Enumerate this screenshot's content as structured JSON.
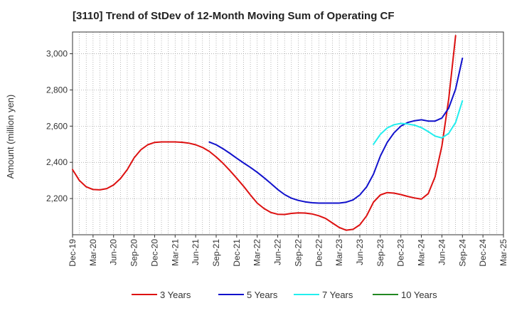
{
  "chart_data": {
    "type": "line",
    "title": "[3110]  Trend of StDev of 12-Month Moving Sum of Operating CF",
    "xlabel": "",
    "ylabel": "Amount (million yen)",
    "ylim": [
      2000,
      3120
    ],
    "yticks": [
      2200,
      2400,
      2600,
      2800,
      3000
    ],
    "ytick_labels": [
      "2,200",
      "2,400",
      "2,600",
      "2,800",
      "3,000"
    ],
    "x_start": "Dec-19",
    "x_end": "Mar-25",
    "xtick_labels": [
      "Dec-19",
      "Mar-20",
      "Jun-20",
      "Sep-20",
      "Dec-20",
      "Mar-21",
      "Jun-21",
      "Sep-21",
      "Dec-21",
      "Mar-22",
      "Jun-22",
      "Sep-22",
      "Dec-22",
      "Mar-23",
      "Jun-23",
      "Sep-23",
      "Dec-23",
      "Mar-24",
      "Jun-24",
      "Sep-24",
      "Dec-24",
      "Mar-25"
    ],
    "grid": true,
    "legend_position": "bottom",
    "series": [
      {
        "name": "3 Years",
        "color": "#dd1111",
        "x": [
          "Dec-19",
          "Jan-20",
          "Feb-20",
          "Mar-20",
          "Apr-20",
          "May-20",
          "Jun-20",
          "Jul-20",
          "Aug-20",
          "Sep-20",
          "Oct-20",
          "Nov-20",
          "Dec-20",
          "Jan-21",
          "Feb-21",
          "Mar-21",
          "Apr-21",
          "May-21",
          "Jun-21",
          "Jul-21",
          "Aug-21",
          "Sep-21",
          "Oct-21",
          "Nov-21",
          "Dec-21",
          "Jan-22",
          "Feb-22",
          "Mar-22",
          "Apr-22",
          "May-22",
          "Jun-22",
          "Jul-22",
          "Aug-22",
          "Sep-22",
          "Oct-22",
          "Nov-22",
          "Dec-22",
          "Jan-23",
          "Feb-23",
          "Mar-23",
          "Apr-23",
          "May-23",
          "Jun-23",
          "Jul-23",
          "Aug-23",
          "Sep-23",
          "Oct-23",
          "Nov-23",
          "Dec-23",
          "Jan-24",
          "Feb-24",
          "Mar-24",
          "Apr-24",
          "May-24",
          "Jun-24",
          "Jul-24",
          "Aug-24",
          "Sep-24"
        ],
        "values": [
          2360,
          2300,
          2265,
          2250,
          2248,
          2255,
          2275,
          2310,
          2360,
          2425,
          2470,
          2497,
          2510,
          2513,
          2513,
          2513,
          2511,
          2506,
          2497,
          2482,
          2460,
          2430,
          2395,
          2355,
          2312,
          2268,
          2220,
          2175,
          2145,
          2123,
          2113,
          2112,
          2118,
          2121,
          2120,
          2115,
          2105,
          2090,
          2065,
          2040,
          2025,
          2030,
          2055,
          2105,
          2180,
          2220,
          2233,
          2230,
          2222,
          2212,
          2203,
          2197,
          2227,
          2320,
          2490,
          2750,
          3100,
          null
        ]
      },
      {
        "name": "5 Years",
        "color": "#1111cc",
        "x": [
          "Aug-21",
          "Sep-21",
          "Oct-21",
          "Nov-21",
          "Dec-21",
          "Jan-22",
          "Feb-22",
          "Mar-22",
          "Apr-22",
          "May-22",
          "Jun-22",
          "Jul-22",
          "Aug-22",
          "Sep-22",
          "Oct-22",
          "Nov-22",
          "Dec-22",
          "Jan-23",
          "Feb-23",
          "Mar-23",
          "Apr-23",
          "May-23",
          "Jun-23",
          "Jul-23",
          "Aug-23",
          "Sep-23",
          "Oct-23",
          "Nov-23",
          "Dec-23",
          "Jan-24",
          "Feb-24",
          "Mar-24",
          "Apr-24",
          "May-24",
          "Jun-24",
          "Jul-24",
          "Aug-24",
          "Sep-24"
        ],
        "values": [
          2512,
          2497,
          2475,
          2450,
          2423,
          2397,
          2372,
          2345,
          2315,
          2283,
          2250,
          2222,
          2202,
          2190,
          2182,
          2177,
          2175,
          2175,
          2175,
          2175,
          2180,
          2192,
          2220,
          2265,
          2335,
          2435,
          2510,
          2563,
          2600,
          2620,
          2630,
          2635,
          2628,
          2628,
          2645,
          2700,
          2805,
          2975
        ]
      },
      {
        "name": "7 Years",
        "color": "#22eeee",
        "x": [
          "Aug-23",
          "Sep-23",
          "Oct-23",
          "Nov-23",
          "Dec-23",
          "Jan-24",
          "Feb-24",
          "Mar-24",
          "Apr-24",
          "May-24",
          "Jun-24",
          "Jul-24",
          "Aug-24",
          "Sep-24"
        ],
        "values": [
          2500,
          2555,
          2590,
          2608,
          2615,
          2612,
          2605,
          2592,
          2570,
          2545,
          2535,
          2560,
          2620,
          2740
        ]
      },
      {
        "name": "10 Years",
        "color": "#228822",
        "x": [],
        "values": []
      }
    ]
  }
}
